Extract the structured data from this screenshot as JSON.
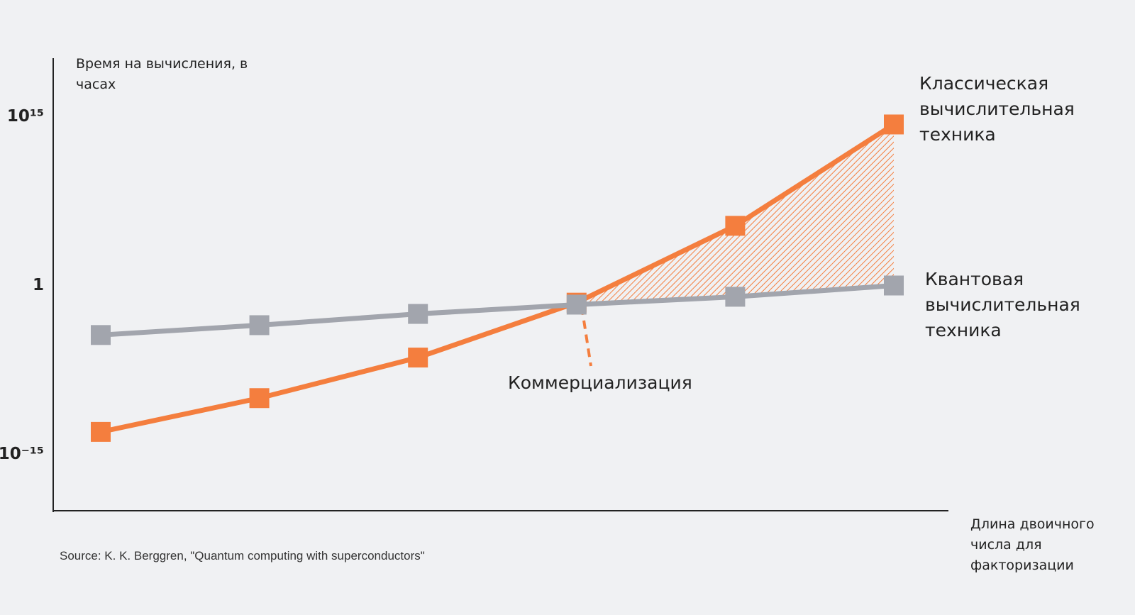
{
  "chart_data": {
    "type": "line",
    "y_label": "Время на вычисления, в часах",
    "x_label": "Длина двоичного числа для факторизации",
    "annotation": "Коммерциализация",
    "source": "Source: K. K. Berggren, \"Quantum computing with superconductors\"",
    "categories": [
      null,
      null,
      null,
      null,
      null,
      null
    ],
    "log_y": true,
    "grid": false,
    "ylim": [
      1e-20,
      1e+20
    ],
    "yticks": [
      {
        "value": 1000000000000000.0,
        "label": "10¹⁵"
      },
      1,
      {
        "value": 1e-15,
        "label": "10⁻¹⁵"
      }
    ],
    "series": [
      {
        "name": "Классическая вычислительная техника",
        "color": "#f47e3e",
        "values": [
          1e-13,
          1e-10,
          4e-07,
          0.03,
          200000,
          200000000000000.0
        ]
      },
      {
        "name": "Квантовая вычислительная техника",
        "color": "#a2a5ad",
        "values": [
          4e-05,
          0.0003,
          0.003,
          0.02,
          0.1,
          1
        ]
      }
    ]
  }
}
